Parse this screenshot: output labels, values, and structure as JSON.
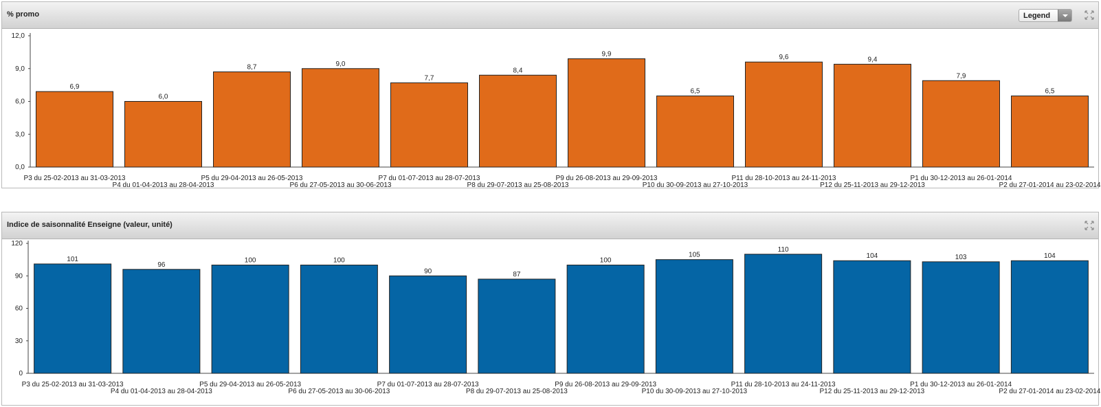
{
  "chart_data": [
    {
      "type": "bar",
      "title": "% promo",
      "categories": [
        "P3 du 25-02-2013 au 31-03-2013",
        "P4 du 01-04-2013 au 28-04-2013",
        "P5 du 29-04-2013 au 26-05-2013",
        "P6 du 27-05-2013 au 30-06-2013",
        "P7 du 01-07-2013 au 28-07-2013",
        "P8 du 29-07-2013 au 25-08-2013",
        "P9 du 26-08-2013 au 29-09-2013",
        "P10 du 30-09-2013 au 27-10-2013",
        "P11 du 28-10-2013 au 24-11-2013",
        "P12 du 25-11-2013 au 29-12-2013",
        "P1 du 30-12-2013 au 26-01-2014",
        "P2 du 27-01-2014 au 23-02-2014"
      ],
      "values": [
        6.9,
        6.0,
        8.7,
        9.0,
        7.7,
        8.4,
        9.9,
        6.5,
        9.6,
        9.4,
        7.9,
        6.5
      ],
      "value_labels": [
        "6,9",
        "6,0",
        "8,7",
        "9,0",
        "7,7",
        "8,4",
        "9,9",
        "6,5",
        "9,6",
        "9,4",
        "7,9",
        "6,5"
      ],
      "ylim": [
        0,
        12
      ],
      "yticks": [
        0,
        3,
        6,
        9,
        12
      ],
      "ytick_labels": [
        "0,0",
        "3,0",
        "6,0",
        "9,0",
        "12,0"
      ],
      "color": "#e06b1a",
      "grid": false,
      "legend_control": "Legend"
    },
    {
      "type": "bar",
      "title": "Indice de saisonnalité Enseigne (valeur, unité)",
      "categories": [
        "P3 du 25-02-2013 au 31-03-2013",
        "P4 du 01-04-2013 au 28-04-2013",
        "P5 du 29-04-2013 au 26-05-2013",
        "P6 du 27-05-2013 au 30-06-2013",
        "P7 du 01-07-2013 au 28-07-2013",
        "P8 du 29-07-2013 au 25-08-2013",
        "P9 du 26-08-2013 au 29-09-2013",
        "P10 du 30-09-2013 au 27-10-2013",
        "P11 du 28-10-2013 au 24-11-2013",
        "P12 du 25-11-2013 au 29-12-2013",
        "P1 du 30-12-2013 au 26-01-2014",
        "P2 du 27-01-2014 au 23-02-2014"
      ],
      "values": [
        101,
        96,
        100,
        100,
        90,
        87,
        100,
        105,
        110,
        104,
        103,
        104
      ],
      "value_labels": [
        "101",
        "96",
        "100",
        "100",
        "90",
        "87",
        "100",
        "105",
        "110",
        "104",
        "103",
        "104"
      ],
      "ylim": [
        0,
        120
      ],
      "yticks": [
        0,
        30,
        60,
        90,
        120
      ],
      "ytick_labels": [
        "0",
        "30",
        "60",
        "90",
        "120"
      ],
      "color": "#0565a5",
      "grid": false
    }
  ]
}
